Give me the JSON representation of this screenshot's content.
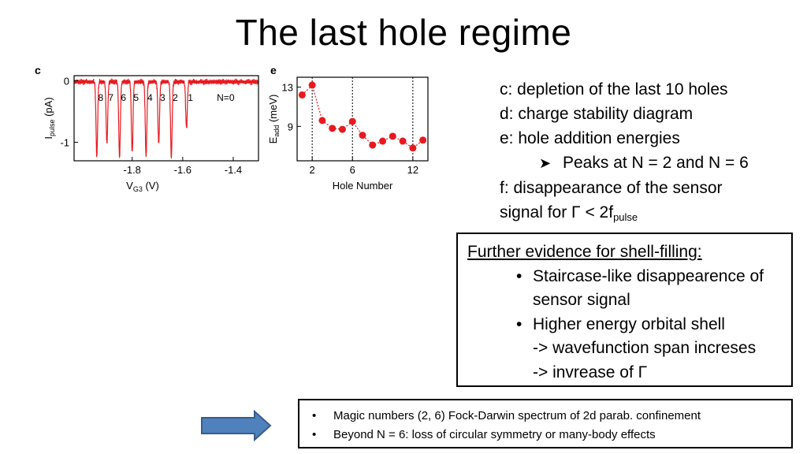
{
  "slide": {
    "title": "The last hole regime"
  },
  "description": {
    "line_c": "c: depletion of the last 10 holes",
    "line_d": "d: charge stability diagram",
    "line_e": "e: hole addition energies",
    "peaks": "Peaks at N = 2 and N = 6",
    "line_f1": "f: disappearance of the sensor",
    "line_f2_prefix": "signal for Γ < 2f",
    "line_f2_sub": "pulse"
  },
  "evidence_box": {
    "heading": "Further evidence for shell-filling:",
    "bullet_char": "•",
    "item1_a": "Staircase-like disappearence of",
    "item1_b": "sensor signal",
    "item2_a": "Higher energy orbital shell",
    "item2_b": "-> wavefunction span increses",
    "item2_c": "-> invrease of Γ"
  },
  "summary_box": {
    "bullet_char": "•",
    "item1": "Magic numbers (2, 6) Fock-Darwin spectrum of 2d parab. confinement",
    "item2": "Beyond N = 6: loss of circular symmetry or many-body effects"
  },
  "colors": {
    "trace": "#e8191f",
    "arrow_fill": "#4f81bd",
    "arrow_stroke": "#385d8a"
  },
  "chart_data": [
    {
      "type": "line",
      "panel_label": "c",
      "xlabel_main": "V",
      "xlabel_sub": "G3",
      "xlabel_unit": " (V)",
      "ylabel_main": "I",
      "ylabel_sub": "pulse",
      "ylabel_unit": " (pA)",
      "xlim": [
        -2.03,
        -1.3
      ],
      "ylim": [
        -1.3,
        0.08
      ],
      "x_ticks": [
        -1.8,
        -1.6,
        -1.4
      ],
      "x_tick_labels": [
        "-1.8",
        "-1.6",
        "-1.4"
      ],
      "y_ticks": [
        0,
        -1
      ],
      "y_tick_labels": [
        "0",
        "-1"
      ],
      "dips": [
        {
          "label": "8",
          "x": -1.94,
          "depth": -1.2
        },
        {
          "label": "7",
          "x": -1.9,
          "depth": -1.0
        },
        {
          "label": "6",
          "x": -1.85,
          "depth": -1.22
        },
        {
          "label": "5",
          "x": -1.8,
          "depth": -1.15
        },
        {
          "label": "4",
          "x": -1.745,
          "depth": -1.2
        },
        {
          "label": "3",
          "x": -1.695,
          "depth": -1.0
        },
        {
          "label": "2",
          "x": -1.645,
          "depth": -1.22
        },
        {
          "label": "1",
          "x": -1.585,
          "depth": -0.75
        }
      ],
      "annotation": "N=0"
    },
    {
      "type": "scatter",
      "panel_label": "e",
      "xlabel": "Hole Number",
      "ylabel_main": "E",
      "ylabel_sub": "add",
      "ylabel_unit": " (meV)",
      "xlim": [
        0.5,
        13.5
      ],
      "ylim": [
        5.5,
        14
      ],
      "x_ticks": [
        2,
        6,
        12
      ],
      "x_tick_labels": [
        "2",
        "6",
        "12"
      ],
      "y_ticks": [
        13,
        9
      ],
      "y_tick_labels": [
        "13",
        "9"
      ],
      "vlines": [
        2,
        6,
        12
      ],
      "x": [
        1,
        2,
        3,
        4,
        5,
        6,
        7,
        8,
        9,
        10,
        11,
        12,
        13
      ],
      "y": [
        12.2,
        13.2,
        9.6,
        8.8,
        8.7,
        9.5,
        8.1,
        7.1,
        7.5,
        8.0,
        7.5,
        6.8,
        7.6
      ]
    }
  ]
}
